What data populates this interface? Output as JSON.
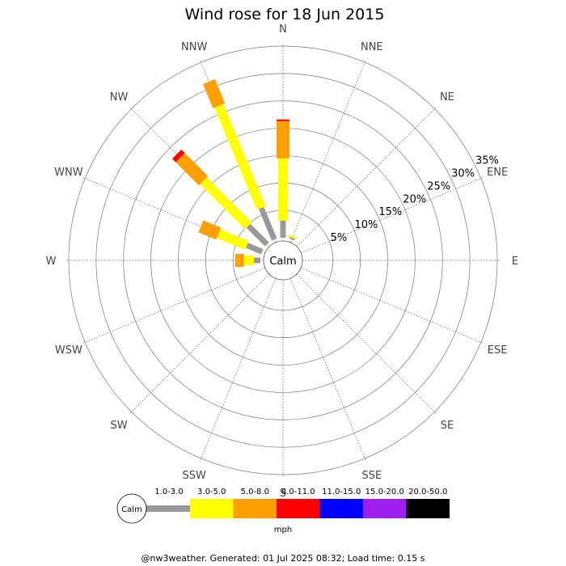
{
  "chart_data": {
    "type": "wind-rose",
    "title": "Wind rose for 18 Jun 2015",
    "directions": [
      "N",
      "NNE",
      "NE",
      "ENE",
      "E",
      "ESE",
      "SE",
      "SSE",
      "S",
      "SSW",
      "SW",
      "WSW",
      "W",
      "WNW",
      "NW",
      "NNW"
    ],
    "radial_ticks": [
      5,
      10,
      15,
      20,
      25,
      30,
      35
    ],
    "radial_tick_labels": [
      "5%",
      "10%",
      "15%",
      "20%",
      "25%",
      "30%",
      "35%"
    ],
    "radial_max": 35,
    "calm_label": "Calm",
    "speed_bins": [
      {
        "label": "1.0-3.0",
        "color": "#999999"
      },
      {
        "label": "3.0-5.0",
        "color": "#ffff00"
      },
      {
        "label": "5.0-8.0",
        "color": "#ff9f00"
      },
      {
        "label": "8.0-11.0",
        "color": "#ff0000"
      },
      {
        "label": "11.0-15.0",
        "color": "#0000ff"
      },
      {
        "label": "15.0-20.0",
        "color": "#9f1fef"
      },
      {
        "label": "20.0-50.0",
        "color": "#000000"
      }
    ],
    "unit": "mph",
    "series": [
      {
        "direction": "N",
        "values": [
          3.1,
          11.4,
          6.8,
          0.3,
          0,
          0,
          0
        ]
      },
      {
        "direction": "NNE",
        "values": [
          0.3,
          0.3,
          0,
          0,
          0,
          0,
          0
        ]
      },
      {
        "direction": "W",
        "values": [
          1.2,
          1.8,
          1.6,
          0,
          0,
          0,
          0
        ]
      },
      {
        "direction": "WNW",
        "values": [
          3.0,
          5.6,
          3.5,
          0,
          0,
          0,
          0
        ]
      },
      {
        "direction": "NW",
        "values": [
          4.8,
          11.6,
          6.0,
          0.9,
          0,
          0,
          0
        ]
      },
      {
        "direction": "NNW",
        "values": [
          6.2,
          20.2,
          4.8,
          0,
          0,
          0,
          0
        ]
      }
    ]
  },
  "footer": "@nw3weather. Generated: 01 Jul 2025 08:32; Load time: 0.15 s"
}
